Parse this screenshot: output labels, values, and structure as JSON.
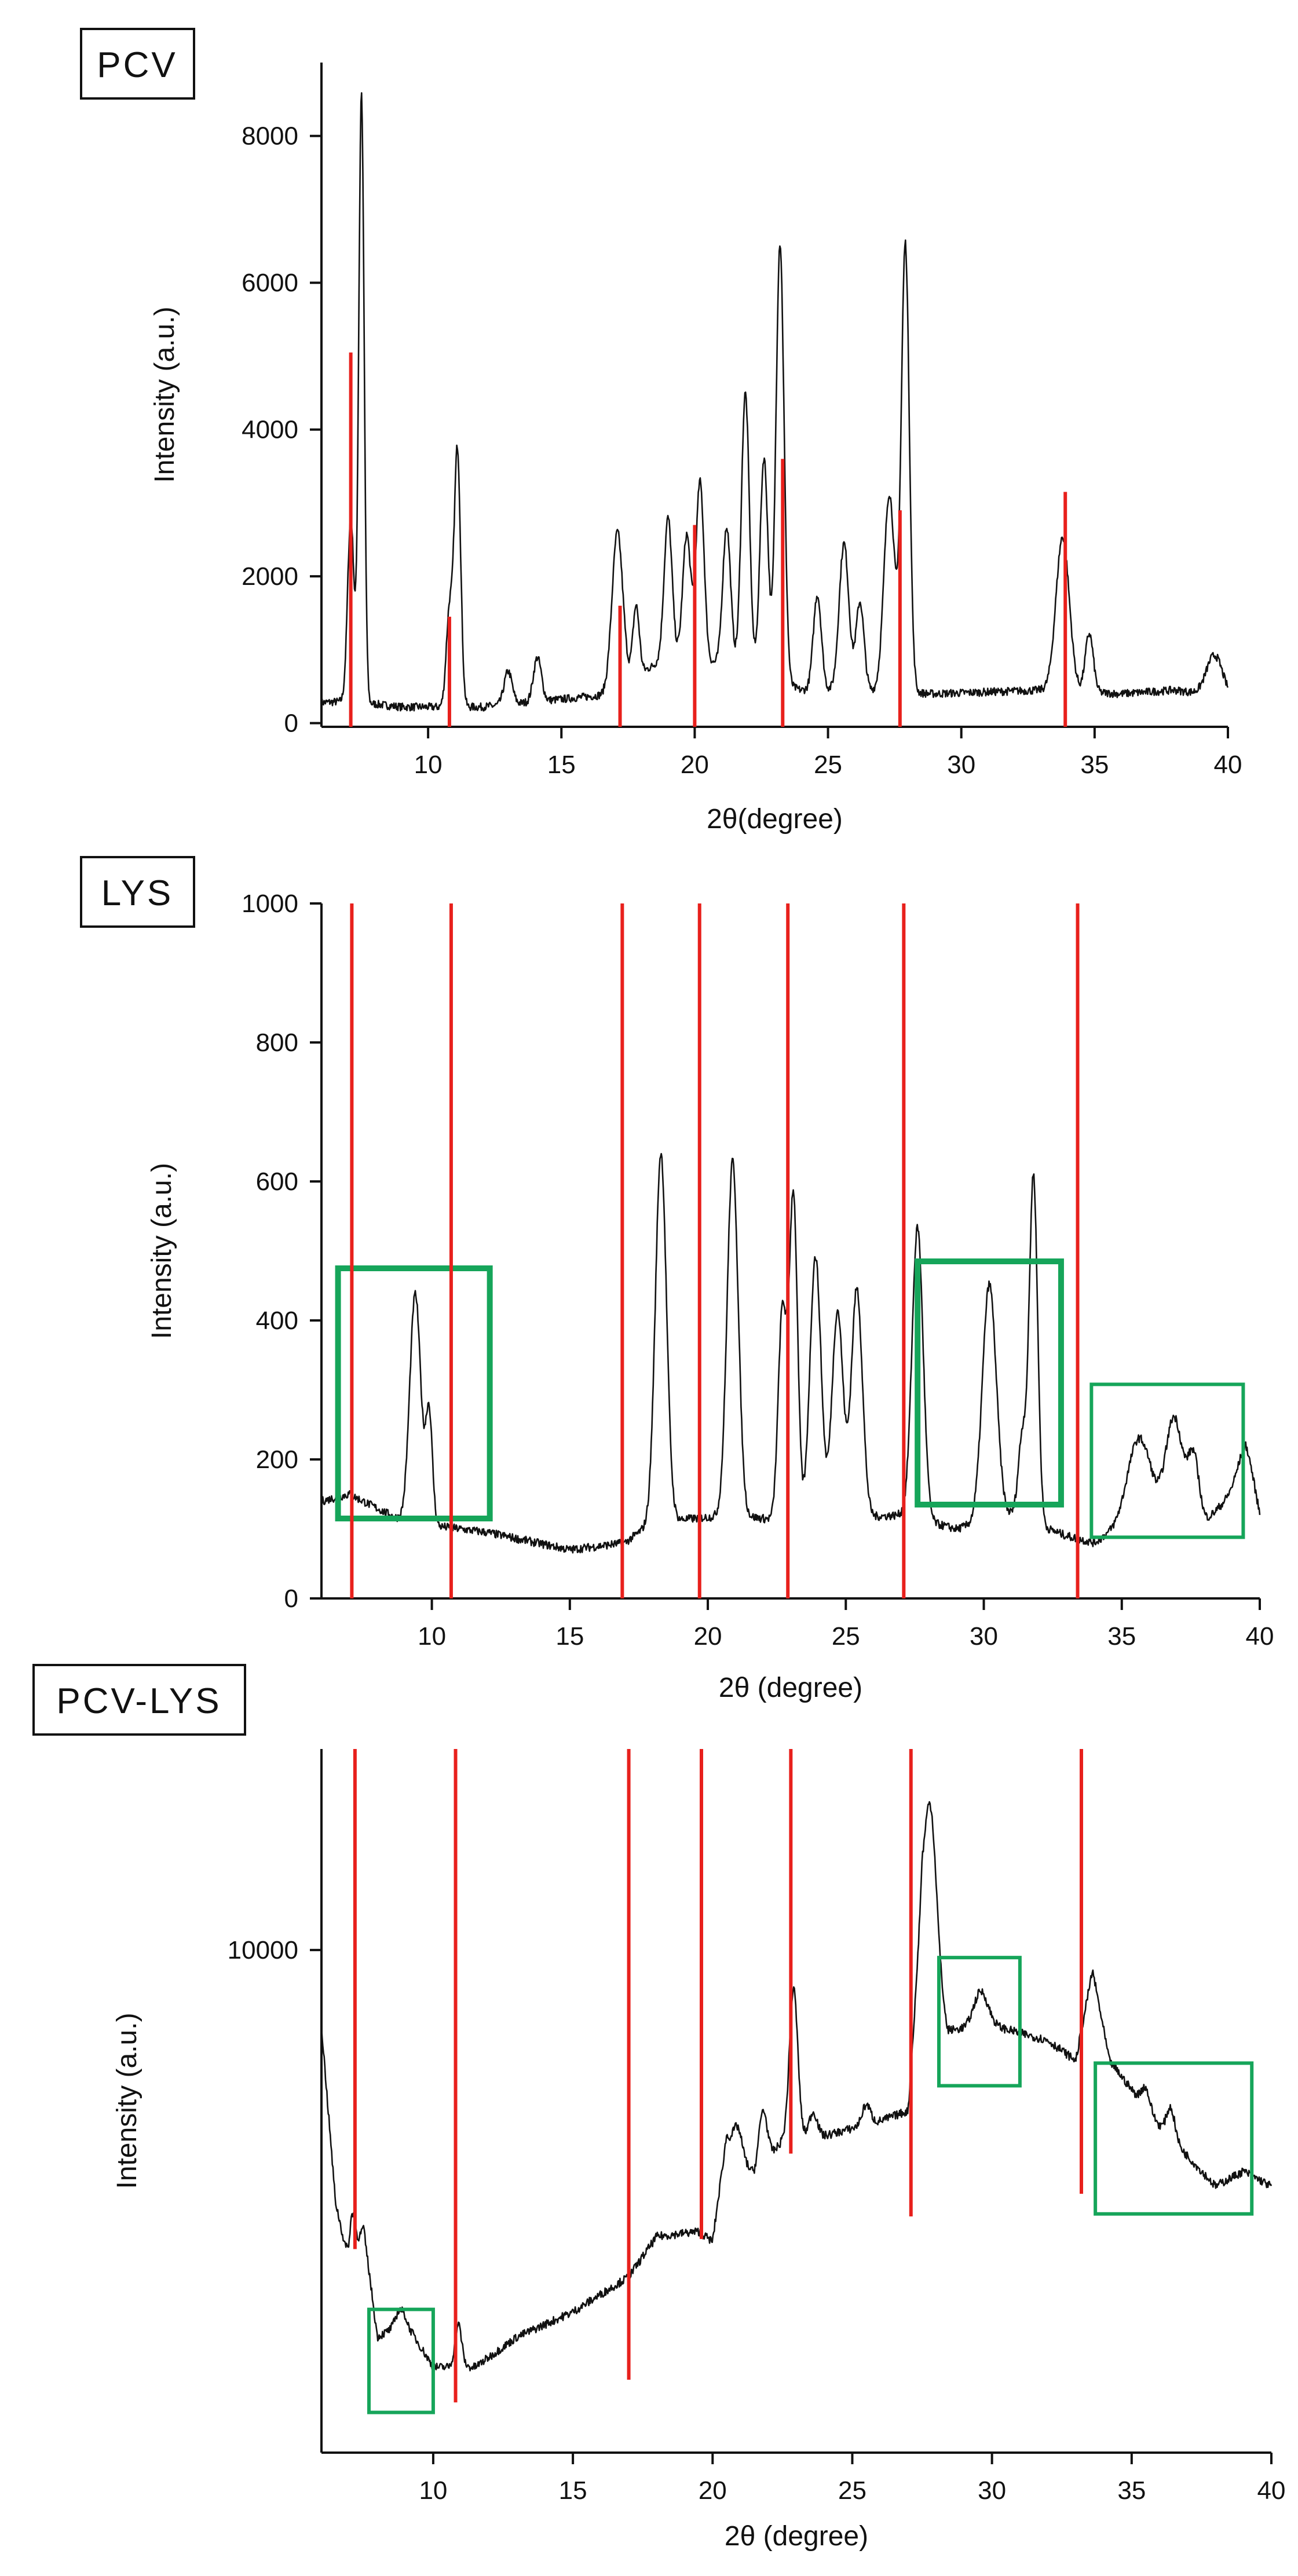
{
  "colors": {
    "trace": "#111111",
    "guide": "#e8201c",
    "box": "#16a55a"
  },
  "chart_data": [
    {
      "type": "line",
      "panel_label": "PCV",
      "xlabel": "2θ(degree)",
      "ylabel": "Intensity (a.u.)",
      "xlim": [
        6,
        40
      ],
      "ylim": [
        -50,
        9000
      ],
      "xticks": [
        10,
        15,
        20,
        25,
        30,
        35,
        40
      ],
      "yticks": [
        0,
        2000,
        4000,
        6000,
        8000
      ],
      "baseline": [
        [
          6,
          280
        ],
        [
          7,
          300
        ],
        [
          9,
          220
        ],
        [
          12,
          220
        ],
        [
          16.5,
          380
        ],
        [
          19,
          900
        ],
        [
          21,
          800
        ],
        [
          24,
          450
        ],
        [
          26,
          450
        ],
        [
          29,
          400
        ],
        [
          33,
          450
        ],
        [
          36,
          400
        ],
        [
          38,
          450
        ],
        [
          40,
          350
        ]
      ],
      "peaks": [
        {
          "x": 7.1,
          "y": 2500,
          "w": 0.12
        },
        {
          "x": 7.5,
          "y": 8300,
          "w": 0.1
        },
        {
          "x": 10.8,
          "y": 1300,
          "w": 0.12
        },
        {
          "x": 11.1,
          "y": 3500,
          "w": 0.12
        },
        {
          "x": 13.0,
          "y": 450,
          "w": 0.15
        },
        {
          "x": 14.1,
          "y": 600,
          "w": 0.15
        },
        {
          "x": 17.1,
          "y": 2100,
          "w": 0.2
        },
        {
          "x": 17.8,
          "y": 950,
          "w": 0.12
        },
        {
          "x": 19.0,
          "y": 1900,
          "w": 0.15
        },
        {
          "x": 19.7,
          "y": 1700,
          "w": 0.15
        },
        {
          "x": 20.2,
          "y": 2450,
          "w": 0.15
        },
        {
          "x": 21.2,
          "y": 1900,
          "w": 0.15
        },
        {
          "x": 21.9,
          "y": 3800,
          "w": 0.15
        },
        {
          "x": 22.6,
          "y": 3000,
          "w": 0.15
        },
        {
          "x": 23.2,
          "y": 6000,
          "w": 0.15
        },
        {
          "x": 24.6,
          "y": 1300,
          "w": 0.15
        },
        {
          "x": 25.6,
          "y": 2000,
          "w": 0.18
        },
        {
          "x": 26.2,
          "y": 1200,
          "w": 0.15
        },
        {
          "x": 27.3,
          "y": 2700,
          "w": 0.2
        },
        {
          "x": 27.9,
          "y": 6100,
          "w": 0.15
        },
        {
          "x": 33.8,
          "y": 2100,
          "w": 0.25
        },
        {
          "x": 34.8,
          "y": 800,
          "w": 0.15
        },
        {
          "x": 39.5,
          "y": 550,
          "w": 0.3
        }
      ],
      "reference_lines": [
        {
          "x": 7.1,
          "top": 5050,
          "bottom": -50
        },
        {
          "x": 10.8,
          "top": 1450,
          "bottom": -50
        },
        {
          "x": 17.2,
          "top": 1600,
          "bottom": -50
        },
        {
          "x": 20.0,
          "top": 2700,
          "bottom": -50
        },
        {
          "x": 23.3,
          "top": 3600,
          "bottom": -50
        },
        {
          "x": 27.7,
          "top": 2900,
          "bottom": -50
        },
        {
          "x": 33.9,
          "top": 3150,
          "bottom": -50
        }
      ],
      "highlight_boxes": []
    },
    {
      "type": "line",
      "panel_label": "LYS",
      "xlabel": "2θ (degree)",
      "ylabel": "Intensity (a.u.)",
      "xlim": [
        6,
        40
      ],
      "ylim": [
        0,
        1000
      ],
      "xticks": [
        10,
        15,
        20,
        25,
        30,
        35,
        40
      ],
      "yticks": [
        0,
        200,
        400,
        600,
        800,
        1000
      ],
      "baseline": [
        [
          6,
          140
        ],
        [
          7,
          150
        ],
        [
          9,
          110
        ],
        [
          12,
          95
        ],
        [
          15,
          70
        ],
        [
          17,
          80
        ],
        [
          18,
          110
        ],
        [
          21,
          120
        ],
        [
          23,
          110
        ],
        [
          27,
          120
        ],
        [
          29,
          100
        ],
        [
          31,
          120
        ],
        [
          33,
          90
        ],
        [
          34,
          80
        ],
        [
          36,
          130
        ],
        [
          38,
          110
        ],
        [
          39.5,
          170
        ],
        [
          40,
          110
        ]
      ],
      "peaks": [
        {
          "x": 9.4,
          "y": 330,
          "w": 0.2
        },
        {
          "x": 9.9,
          "y": 160,
          "w": 0.12
        },
        {
          "x": 18.3,
          "y": 530,
          "w": 0.2
        },
        {
          "x": 20.9,
          "y": 510,
          "w": 0.2
        },
        {
          "x": 22.7,
          "y": 300,
          "w": 0.15
        },
        {
          "x": 23.1,
          "y": 470,
          "w": 0.15
        },
        {
          "x": 23.9,
          "y": 380,
          "w": 0.2
        },
        {
          "x": 24.7,
          "y": 300,
          "w": 0.2
        },
        {
          "x": 25.4,
          "y": 330,
          "w": 0.2
        },
        {
          "x": 27.6,
          "y": 420,
          "w": 0.2
        },
        {
          "x": 30.2,
          "y": 340,
          "w": 0.25
        },
        {
          "x": 31.4,
          "y": 120,
          "w": 0.15
        },
        {
          "x": 31.8,
          "y": 500,
          "w": 0.15
        },
        {
          "x": 35.6,
          "y": 110,
          "w": 0.4
        },
        {
          "x": 36.9,
          "y": 140,
          "w": 0.3
        },
        {
          "x": 37.6,
          "y": 90,
          "w": 0.2
        },
        {
          "x": 39.5,
          "y": 50,
          "w": 0.3
        }
      ],
      "reference_lines": [
        {
          "x": 7.1,
          "top": 1000,
          "bottom": 0
        },
        {
          "x": 10.7,
          "top": 1000,
          "bottom": 0
        },
        {
          "x": 16.9,
          "top": 1000,
          "bottom": 0
        },
        {
          "x": 19.7,
          "top": 1000,
          "bottom": 0
        },
        {
          "x": 22.9,
          "top": 1000,
          "bottom": 0
        },
        {
          "x": 27.1,
          "top": 1000,
          "bottom": 0
        },
        {
          "x": 33.4,
          "top": 1000,
          "bottom": 0
        }
      ],
      "highlight_boxes": [
        {
          "x0": 6.6,
          "x1": 12.1,
          "y0": 115,
          "y1": 475,
          "thick": true
        },
        {
          "x0": 27.6,
          "x1": 32.8,
          "y0": 135,
          "y1": 485,
          "thick": true
        },
        {
          "x0": 33.9,
          "x1": 39.4,
          "y0": 88,
          "y1": 308,
          "thick": false
        }
      ]
    },
    {
      "type": "line",
      "panel_label": "PCV-LYS",
      "xlabel": "2θ (degree)",
      "ylabel": "Intensity (a.u.)",
      "xlim": [
        6,
        40
      ],
      "ylim": [
        0,
        14000
      ],
      "xticks": [
        10,
        15,
        20,
        25,
        30,
        35,
        40
      ],
      "yticks": [
        10000
      ],
      "baseline": [
        [
          6,
          8500
        ],
        [
          6.5,
          5000
        ],
        [
          7,
          3700
        ],
        [
          7.5,
          4500
        ],
        [
          8,
          2300
        ],
        [
          9,
          2600
        ],
        [
          10,
          1700
        ],
        [
          11.5,
          1700
        ],
        [
          13,
          2300
        ],
        [
          15,
          2800
        ],
        [
          17,
          3500
        ],
        [
          18,
          4300
        ],
        [
          19.5,
          4400
        ],
        [
          20,
          4200
        ],
        [
          20.5,
          6300
        ],
        [
          21.5,
          5500
        ],
        [
          22.5,
          6200
        ],
        [
          24,
          6300
        ],
        [
          26,
          6600
        ],
        [
          27,
          6800
        ],
        [
          27.5,
          11000
        ],
        [
          28,
          9800
        ],
        [
          28.4,
          8400
        ],
        [
          30,
          8500
        ],
        [
          32,
          8200
        ],
        [
          33,
          7800
        ],
        [
          33.6,
          9600
        ],
        [
          34.2,
          7800
        ],
        [
          36,
          6500
        ],
        [
          38,
          5300
        ],
        [
          39,
          5600
        ],
        [
          40,
          5300
        ]
      ],
      "peaks": [
        {
          "x": 7.1,
          "y": 900,
          "w": 0.1
        },
        {
          "x": 8.8,
          "y": 300,
          "w": 0.15
        },
        {
          "x": 10.9,
          "y": 850,
          "w": 0.12
        },
        {
          "x": 20.9,
          "y": 500,
          "w": 0.15
        },
        {
          "x": 21.8,
          "y": 1100,
          "w": 0.15
        },
        {
          "x": 22.9,
          "y": 3000,
          "w": 0.15
        },
        {
          "x": 23.6,
          "y": 500,
          "w": 0.15
        },
        {
          "x": 25.5,
          "y": 400,
          "w": 0.15
        },
        {
          "x": 27.8,
          "y": 2600,
          "w": 0.2
        },
        {
          "x": 29.6,
          "y": 700,
          "w": 0.25
        },
        {
          "x": 35.5,
          "y": 400,
          "w": 0.15
        },
        {
          "x": 36.4,
          "y": 600,
          "w": 0.15
        }
      ],
      "reference_lines": [
        {
          "x": 7.2,
          "top": 14000,
          "bottom": 4050
        },
        {
          "x": 10.8,
          "top": 14000,
          "bottom": 1000
        },
        {
          "x": 17.0,
          "top": 14000,
          "bottom": 1450
        },
        {
          "x": 19.6,
          "top": 14000,
          "bottom": 4250
        },
        {
          "x": 22.8,
          "top": 14000,
          "bottom": 5950
        },
        {
          "x": 27.1,
          "top": 14000,
          "bottom": 4700
        },
        {
          "x": 33.2,
          "top": 14000,
          "bottom": 5150
        }
      ],
      "highlight_boxes": [
        {
          "x0": 7.7,
          "x1": 10.0,
          "y0": 800,
          "y1": 2850,
          "thick": false
        },
        {
          "x0": 28.1,
          "x1": 31.0,
          "y0": 7300,
          "y1": 9850,
          "thick": false
        },
        {
          "x0": 33.7,
          "x1": 39.3,
          "y0": 4750,
          "y1": 7750,
          "thick": false
        }
      ]
    }
  ]
}
